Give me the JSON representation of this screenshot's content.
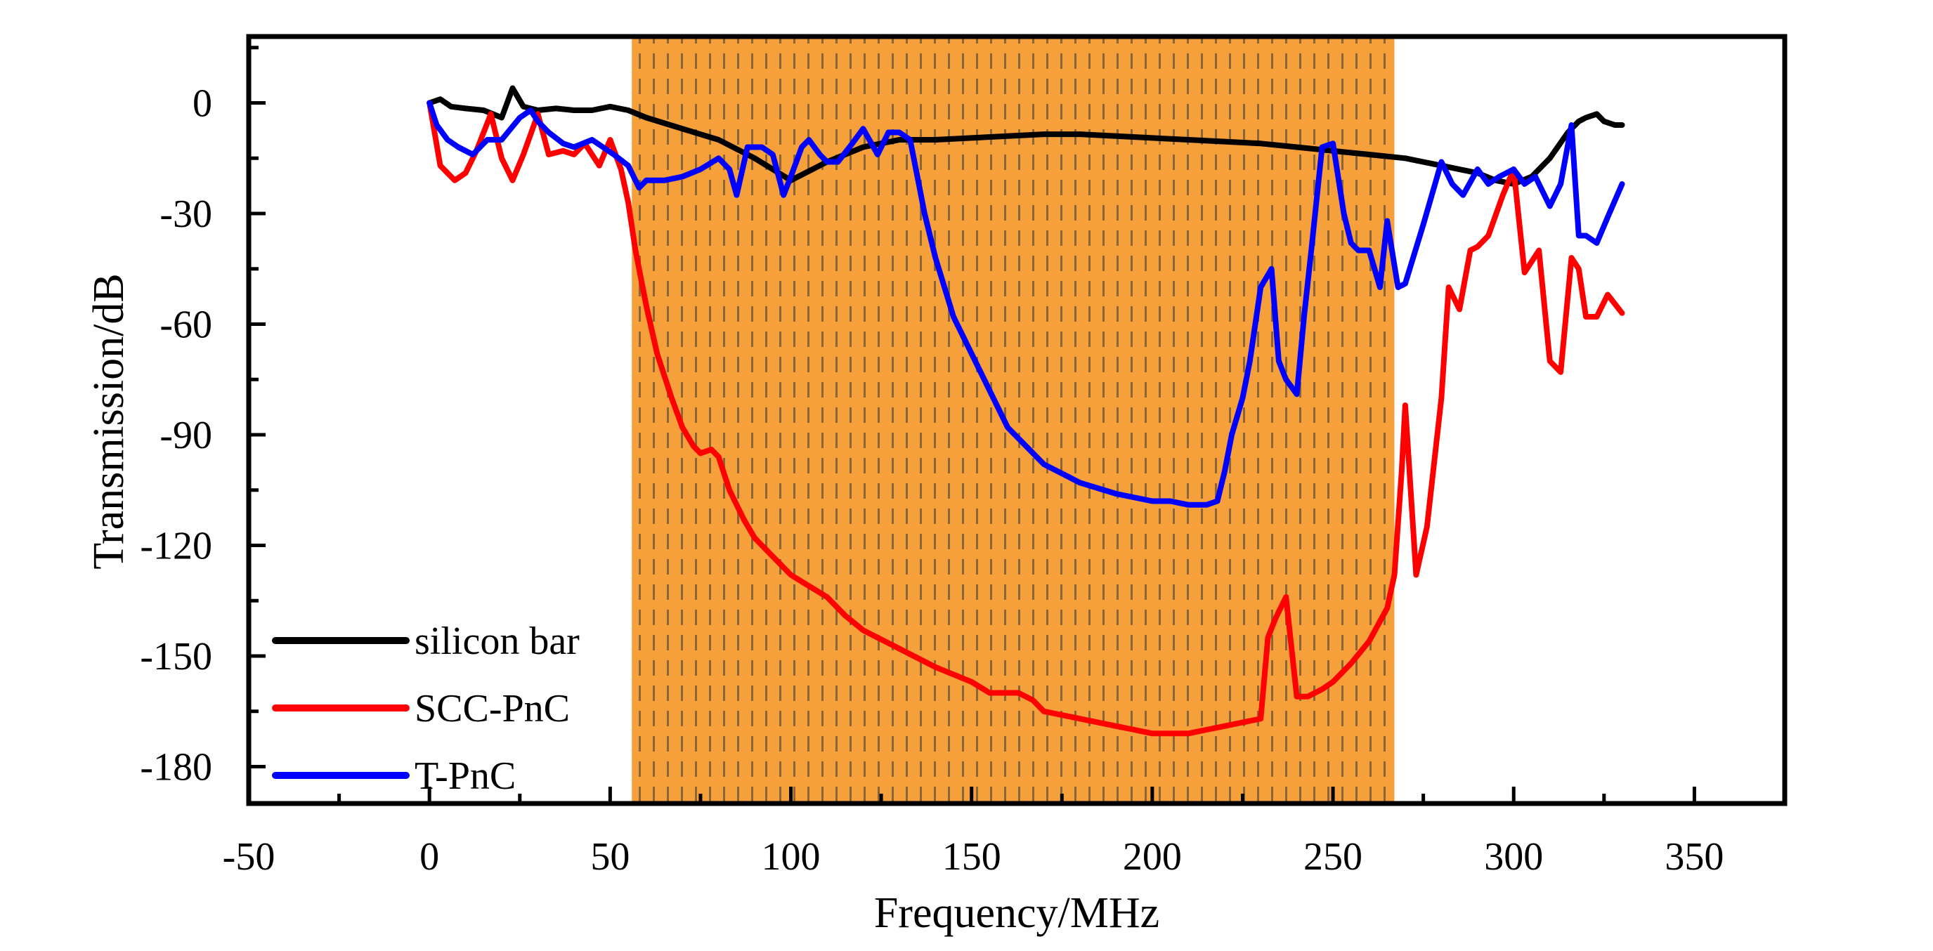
{
  "chart_data": {
    "type": "line",
    "title": "",
    "xlabel": "Frequency/MHz",
    "ylabel": "Transmission/dB",
    "xlim": [
      -50,
      375
    ],
    "ylim": [
      -190,
      18
    ],
    "xticks": [
      -50,
      0,
      50,
      100,
      150,
      200,
      250,
      300,
      350
    ],
    "yticks": [
      0,
      -30,
      -60,
      -90,
      -120,
      -150,
      -180
    ],
    "xtick_labels": [
      "-50",
      "0",
      "50",
      "100",
      "150",
      "200",
      "250",
      "300",
      "350"
    ],
    "ytick_labels": [
      "0",
      "-30",
      "-60",
      "-90",
      "-120",
      "-150",
      "-180"
    ],
    "grid": false,
    "legend_position": "bottom-left",
    "shaded_region": {
      "x_start": 56,
      "x_end": 267,
      "color": "#f6a03c",
      "pattern": "dashed-vertical"
    },
    "series": [
      {
        "name": "silicon bar",
        "color": "#000000",
        "x": [
          0,
          3,
          6,
          10,
          15,
          20,
          23,
          26,
          30,
          35,
          40,
          45,
          50,
          55,
          60,
          70,
          80,
          90,
          100,
          110,
          120,
          130,
          140,
          150,
          160,
          170,
          180,
          190,
          200,
          210,
          220,
          230,
          240,
          250,
          260,
          270,
          280,
          290,
          295,
          300,
          305,
          310,
          315,
          318,
          320,
          323,
          325,
          328,
          330
        ],
        "y": [
          0,
          1,
          -1,
          -1.5,
          -2,
          -4,
          4,
          -1,
          -2,
          -1.5,
          -2,
          -2,
          -1,
          -2,
          -4,
          -7,
          -10,
          -15,
          -21,
          -16,
          -12,
          -10,
          -10,
          -9.5,
          -9,
          -8.5,
          -8.5,
          -9,
          -9.5,
          -10,
          -10.5,
          -11,
          -12,
          -13,
          -14,
          -15,
          -17,
          -19,
          -21,
          -22,
          -20,
          -15,
          -8,
          -5,
          -4,
          -3,
          -5,
          -6,
          -6
        ]
      },
      {
        "name": "SCC-PnC",
        "color": "#ff0000",
        "x": [
          0,
          3,
          7,
          10,
          13,
          17,
          20,
          23,
          26,
          30,
          33,
          37,
          40,
          43,
          47,
          50,
          53,
          55,
          57,
          60,
          63,
          67,
          70,
          73,
          75,
          78,
          80,
          83,
          87,
          90,
          95,
          100,
          105,
          110,
          115,
          120,
          130,
          140,
          150,
          155,
          160,
          163,
          167,
          170,
          180,
          190,
          195,
          200,
          205,
          210,
          215,
          220,
          225,
          230,
          232,
          234,
          237,
          240,
          243,
          247,
          250,
          255,
          260,
          265,
          267,
          269,
          270,
          273,
          276,
          280,
          282,
          285,
          288,
          290,
          293,
          297,
          300,
          303,
          307,
          310,
          313,
          316,
          318,
          320,
          323,
          326,
          330
        ],
        "y": [
          0,
          -17,
          -21,
          -19,
          -13,
          -3,
          -15,
          -21,
          -14,
          -3,
          -14,
          -13,
          -14,
          -11,
          -17,
          -10,
          -18,
          -27,
          -40,
          -55,
          -68,
          -80,
          -88,
          -93,
          -95,
          -94,
          -96,
          -105,
          -113,
          -118,
          -123,
          -128,
          -131,
          -134,
          -139,
          -143,
          -148,
          -153,
          -157,
          -160,
          -160,
          -160,
          -162,
          -165,
          -167,
          -169,
          -170,
          -171,
          -171,
          -171,
          -170,
          -169,
          -168,
          -167,
          -145,
          -140,
          -134,
          -161,
          -161,
          -159,
          -157,
          -152,
          -146,
          -137,
          -128,
          -100,
          -82,
          -128,
          -115,
          -80,
          -50,
          -56,
          -40,
          -39,
          -36,
          -25,
          -18,
          -46,
          -40,
          -70,
          -73,
          -42,
          -45,
          -58,
          -58,
          -52,
          -57
        ]
      },
      {
        "name": "T-PnC",
        "color": "#0000ff",
        "x": [
          0,
          2,
          5,
          8,
          12,
          16,
          20,
          25,
          28,
          30,
          33,
          37,
          40,
          45,
          48,
          51,
          55,
          58,
          60,
          65,
          70,
          75,
          80,
          83,
          85,
          88,
          92,
          95,
          98,
          100,
          103,
          105,
          108,
          110,
          113,
          117,
          120,
          124,
          127,
          130,
          133,
          135,
          137,
          140,
          145,
          150,
          155,
          160,
          170,
          180,
          190,
          200,
          205,
          210,
          215,
          218,
          220,
          222,
          225,
          227,
          230,
          233,
          235,
          237,
          240,
          242,
          244,
          247,
          250,
          253,
          255,
          257,
          260,
          263,
          265,
          268,
          270,
          275,
          280,
          283,
          286,
          290,
          293,
          296,
          300,
          303,
          306,
          310,
          313,
          316,
          318,
          320,
          323,
          326,
          330
        ],
        "y": [
          0,
          -6,
          -10,
          -12,
          -14,
          -10,
          -10,
          -4,
          -2,
          -5,
          -8,
          -11,
          -12,
          -10,
          -12,
          -14,
          -17,
          -23,
          -21,
          -21,
          -20,
          -18,
          -15,
          -18,
          -25,
          -12,
          -12,
          -14,
          -25,
          -20,
          -12,
          -10,
          -14,
          -16,
          -16,
          -11,
          -7,
          -14,
          -8,
          -8,
          -10,
          -20,
          -30,
          -42,
          -58,
          -68,
          -78,
          -88,
          -98,
          -103,
          -106,
          -108,
          -108,
          -109,
          -109,
          -108,
          -100,
          -90,
          -80,
          -70,
          -50,
          -45,
          -70,
          -75,
          -79,
          -58,
          -40,
          -12,
          -11,
          -30,
          -38,
          -40,
          -40,
          -50,
          -32,
          -50,
          -49,
          -33,
          -16,
          -22,
          -25,
          -18,
          -22,
          -20,
          -18,
          -22,
          -20,
          -28,
          -22,
          -6,
          -36,
          -36,
          -38,
          -31,
          -22
        ]
      }
    ]
  }
}
